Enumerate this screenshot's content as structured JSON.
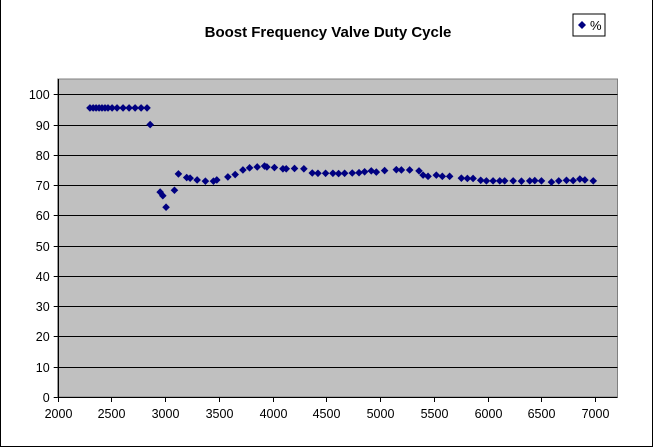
{
  "chart_data": {
    "type": "scatter",
    "title": "Boost Frequency Valve Duty Cycle",
    "xlabel": "",
    "ylabel": "",
    "xlim": [
      2000,
      7200
    ],
    "ylim": [
      0,
      105
    ],
    "grid": "horizontal major gridlines",
    "legend_position": "top-right",
    "x_ticks": [
      "2000",
      "2500",
      "3000",
      "3500",
      "4000",
      "4500",
      "5000",
      "5500",
      "6000",
      "6500",
      "7000"
    ],
    "x_tick_values": [
      2000,
      2500,
      3000,
      3500,
      4000,
      4500,
      5000,
      5500,
      6000,
      6500,
      7000
    ],
    "y_ticks": [
      "0",
      "10",
      "20",
      "30",
      "40",
      "50",
      "60",
      "70",
      "80",
      "90",
      "100"
    ],
    "y_tick_values": [
      0,
      10,
      20,
      30,
      40,
      50,
      60,
      70,
      80,
      90,
      100
    ],
    "colors": {
      "marker": "#000080",
      "plot_bg": "#c0c0c0",
      "gridline": "#000000"
    },
    "series": [
      {
        "name": "%",
        "marker": "diamond",
        "points": [
          [
            2300,
            95.5
          ],
          [
            2330,
            95.5
          ],
          [
            2357,
            95.5
          ],
          [
            2385,
            95.5
          ],
          [
            2412,
            95.5
          ],
          [
            2440,
            95.5
          ],
          [
            2468,
            95.5
          ],
          [
            2506,
            95.5
          ],
          [
            2552,
            95.5
          ],
          [
            2608,
            95.5
          ],
          [
            2664,
            95.5
          ],
          [
            2720,
            95.5
          ],
          [
            2776,
            95.5
          ],
          [
            2831,
            95.5
          ],
          [
            2860,
            90.0
          ],
          [
            2953,
            67.7
          ],
          [
            2978,
            66.5
          ],
          [
            3008,
            62.7
          ],
          [
            3086,
            68.3
          ],
          [
            3123,
            73.7
          ],
          [
            3200,
            72.5
          ],
          [
            3232,
            72.3
          ],
          [
            3297,
            71.7
          ],
          [
            3374,
            71.3
          ],
          [
            3449,
            71.3
          ],
          [
            3480,
            71.7
          ],
          [
            3583,
            72.7
          ],
          [
            3651,
            73.5
          ],
          [
            3723,
            75.0
          ],
          [
            3785,
            75.7
          ],
          [
            3856,
            76.0
          ],
          [
            3924,
            76.3
          ],
          [
            3946,
            76.0
          ],
          [
            4016,
            75.8
          ],
          [
            4095,
            75.4
          ],
          [
            4126,
            75.4
          ],
          [
            4203,
            75.5
          ],
          [
            4290,
            75.4
          ],
          [
            4368,
            74.0
          ],
          [
            4421,
            73.9
          ],
          [
            4492,
            73.9
          ],
          [
            4560,
            73.9
          ],
          [
            4613,
            73.8
          ],
          [
            4669,
            73.9
          ],
          [
            4740,
            74.0
          ],
          [
            4803,
            74.1
          ],
          [
            4855,
            74.4
          ],
          [
            4917,
            74.7
          ],
          [
            4964,
            74.3
          ],
          [
            5041,
            74.8
          ],
          [
            5150,
            75.1
          ],
          [
            5197,
            75.0
          ],
          [
            5274,
            75.0
          ],
          [
            5361,
            74.7
          ],
          [
            5399,
            73.3
          ],
          [
            5445,
            72.9
          ],
          [
            5522,
            73.3
          ],
          [
            5578,
            72.9
          ],
          [
            5646,
            72.9
          ],
          [
            5755,
            72.3
          ],
          [
            5811,
            72.2
          ],
          [
            5864,
            72.2
          ],
          [
            5935,
            71.6
          ],
          [
            5988,
            71.4
          ],
          [
            6050,
            71.4
          ],
          [
            6112,
            71.4
          ],
          [
            6158,
            71.4
          ],
          [
            6237,
            71.4
          ],
          [
            6314,
            71.3
          ],
          [
            6391,
            71.4
          ],
          [
            6438,
            71.5
          ],
          [
            6500,
            71.4
          ],
          [
            6593,
            71.0
          ],
          [
            6661,
            71.4
          ],
          [
            6733,
            71.6
          ],
          [
            6795,
            71.5
          ],
          [
            6857,
            72.0
          ],
          [
            6904,
            71.7
          ],
          [
            6982,
            71.4
          ]
        ]
      }
    ]
  },
  "legend": {
    "symbol-icon": "diamond-marker",
    "label": "%"
  }
}
